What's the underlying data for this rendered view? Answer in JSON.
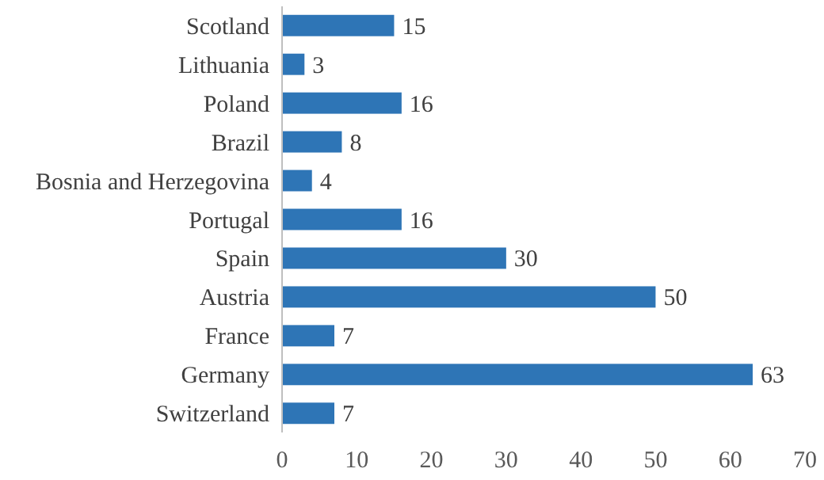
{
  "chart_data": {
    "type": "bar",
    "orientation": "horizontal",
    "categories": [
      "Scotland",
      "Lithuania",
      "Poland",
      "Brazil",
      "Bosnia and Herzegovina",
      "Portugal",
      "Spain",
      "Austria",
      "France",
      "Germany",
      "Switzerland"
    ],
    "values": [
      15,
      3,
      16,
      8,
      4,
      16,
      30,
      50,
      7,
      63,
      7
    ],
    "color": "#2e75b6",
    "xlim": [
      0,
      70
    ],
    "xticks": [
      0,
      10,
      20,
      30,
      40,
      50,
      60,
      70
    ],
    "data_labels": true
  }
}
